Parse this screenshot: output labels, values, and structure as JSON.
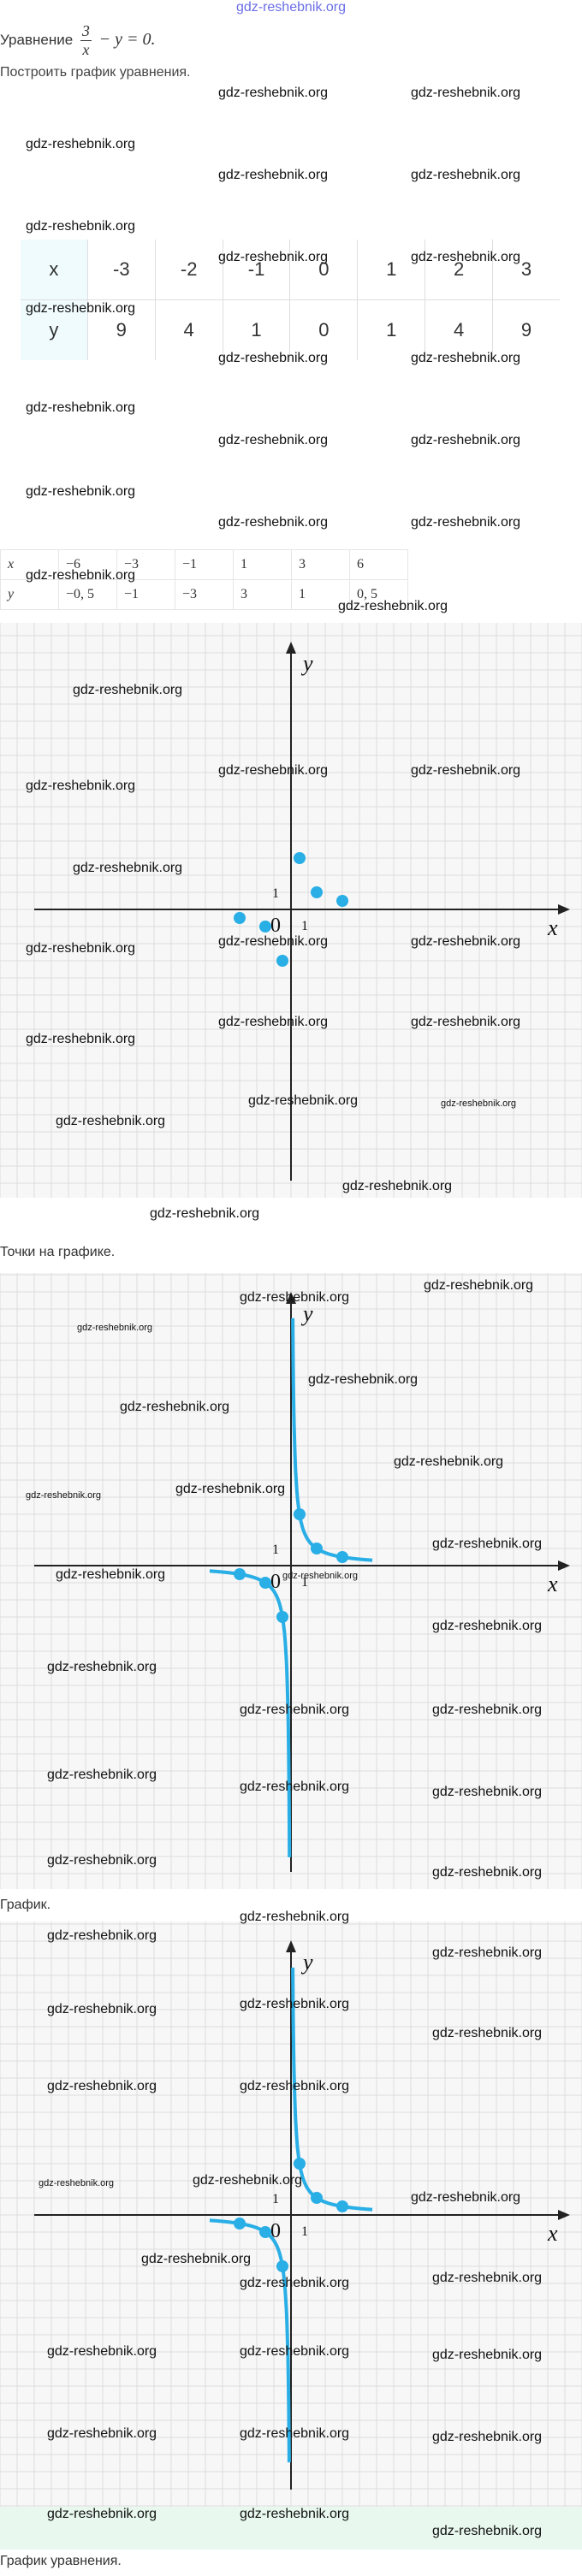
{
  "site": {
    "title": "gdz-reshebnik.org"
  },
  "heading": {
    "label": "Уравнение",
    "numerator": "3",
    "denominator": "x",
    "rest": "− y = 0."
  },
  "subhead": "Построить график уравнения.",
  "watermark": "gdz-reshebnik.org",
  "table1": {
    "rows": [
      {
        "label": "x",
        "values": [
          "-3",
          "-2",
          "-1",
          "0",
          "1",
          "2",
          "3"
        ]
      },
      {
        "label": "y",
        "values": [
          "9",
          "4",
          "1",
          "0",
          "1",
          "4",
          "9"
        ]
      }
    ]
  },
  "table2": {
    "rows": [
      {
        "label": "x",
        "values": [
          "−6",
          "−3",
          "−1",
          "1",
          "3",
          "6"
        ]
      },
      {
        "label": "y",
        "values": [
          "−0, 5",
          "−1",
          "−3",
          "3",
          "1",
          "0, 5"
        ]
      }
    ]
  },
  "graph": {
    "x_axis_label": "x",
    "y_axis_label": "y",
    "origin_label": "0",
    "unit_x_label": "1",
    "unit_y_label": "1",
    "curve_color": "#29aee6",
    "axis_color": "#222222",
    "grid_color": "#dcdcdc",
    "points": [
      {
        "x": -6,
        "y": -0.5
      },
      {
        "x": -3,
        "y": -1
      },
      {
        "x": -1,
        "y": -3
      },
      {
        "x": 1,
        "y": 3
      },
      {
        "x": 3,
        "y": 1
      },
      {
        "x": 6,
        "y": 0.5
      }
    ],
    "function": "y = 3/x"
  },
  "captions": {
    "points": "Точки на графике.",
    "graph": "График.",
    "final": "График уравнения."
  }
}
